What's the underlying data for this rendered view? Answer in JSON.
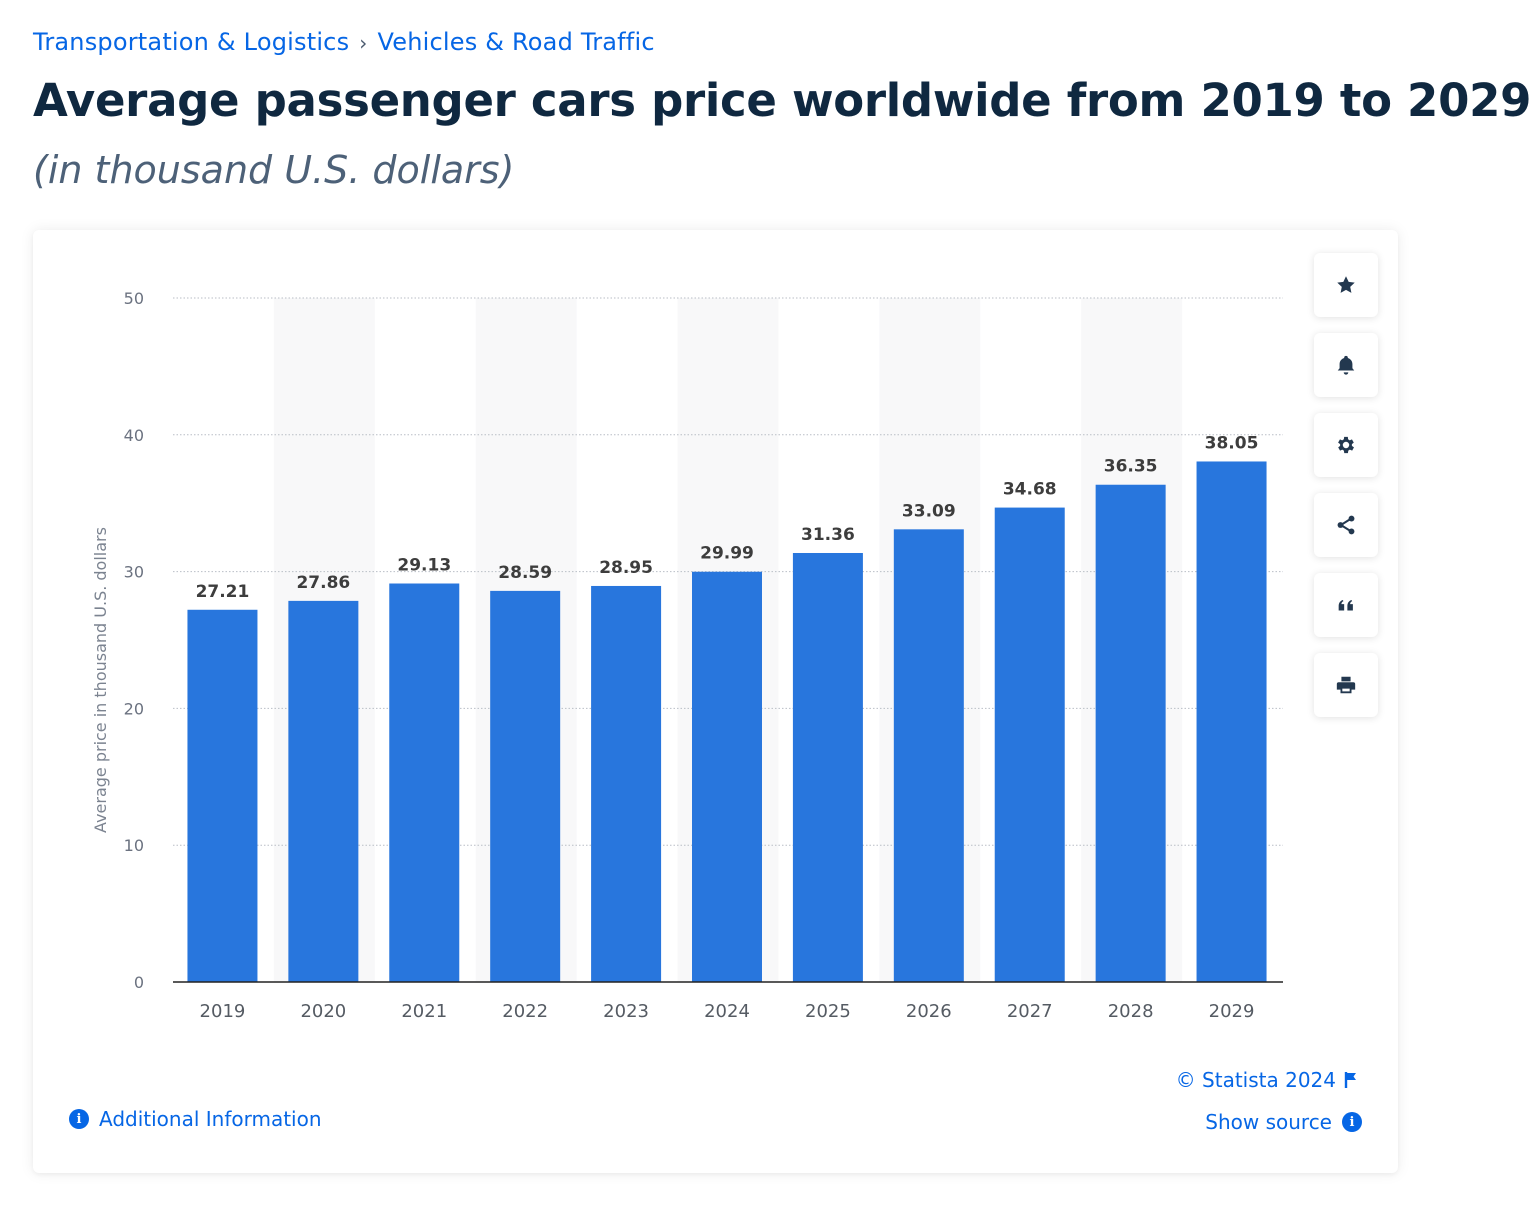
{
  "breadcrumb": {
    "items": [
      "Transportation & Logistics",
      "Vehicles & Road Traffic"
    ],
    "separator": "›"
  },
  "header": {
    "title": "Average passenger cars price worldwide from 2019 to 2029",
    "subtitle": "(in thousand U.S. dollars)"
  },
  "toolbar": {
    "icons": [
      "star-icon",
      "bell-icon",
      "gear-icon",
      "share-icon",
      "quote-icon",
      "print-icon"
    ]
  },
  "footer": {
    "credit": "© Statista 2024",
    "show_source": "Show source",
    "additional_info": "Additional Information"
  },
  "colors": {
    "bar": "#2876dd",
    "accent": "#0666e5",
    "title": "#0f2840"
  },
  "chart_data": {
    "type": "bar",
    "title": "",
    "xlabel": "",
    "ylabel": "Average price in thousand U.S. dollars",
    "categories": [
      "2019",
      "2020",
      "2021",
      "2022",
      "2023",
      "2024",
      "2025",
      "2026",
      "2027",
      "2028",
      "2029"
    ],
    "values": [
      27.21,
      27.86,
      29.13,
      28.59,
      28.95,
      29.99,
      31.36,
      33.09,
      34.68,
      36.35,
      38.05
    ],
    "value_labels": [
      "27.21",
      "27.86",
      "29.13",
      "28.59",
      "28.95",
      "29.99",
      "31.36",
      "33.09",
      "34.68",
      "36.35",
      "38.05"
    ],
    "ylim": [
      0,
      50
    ],
    "yticks": [
      0,
      10,
      20,
      30,
      40,
      50
    ],
    "grid": true,
    "legend": "none"
  }
}
